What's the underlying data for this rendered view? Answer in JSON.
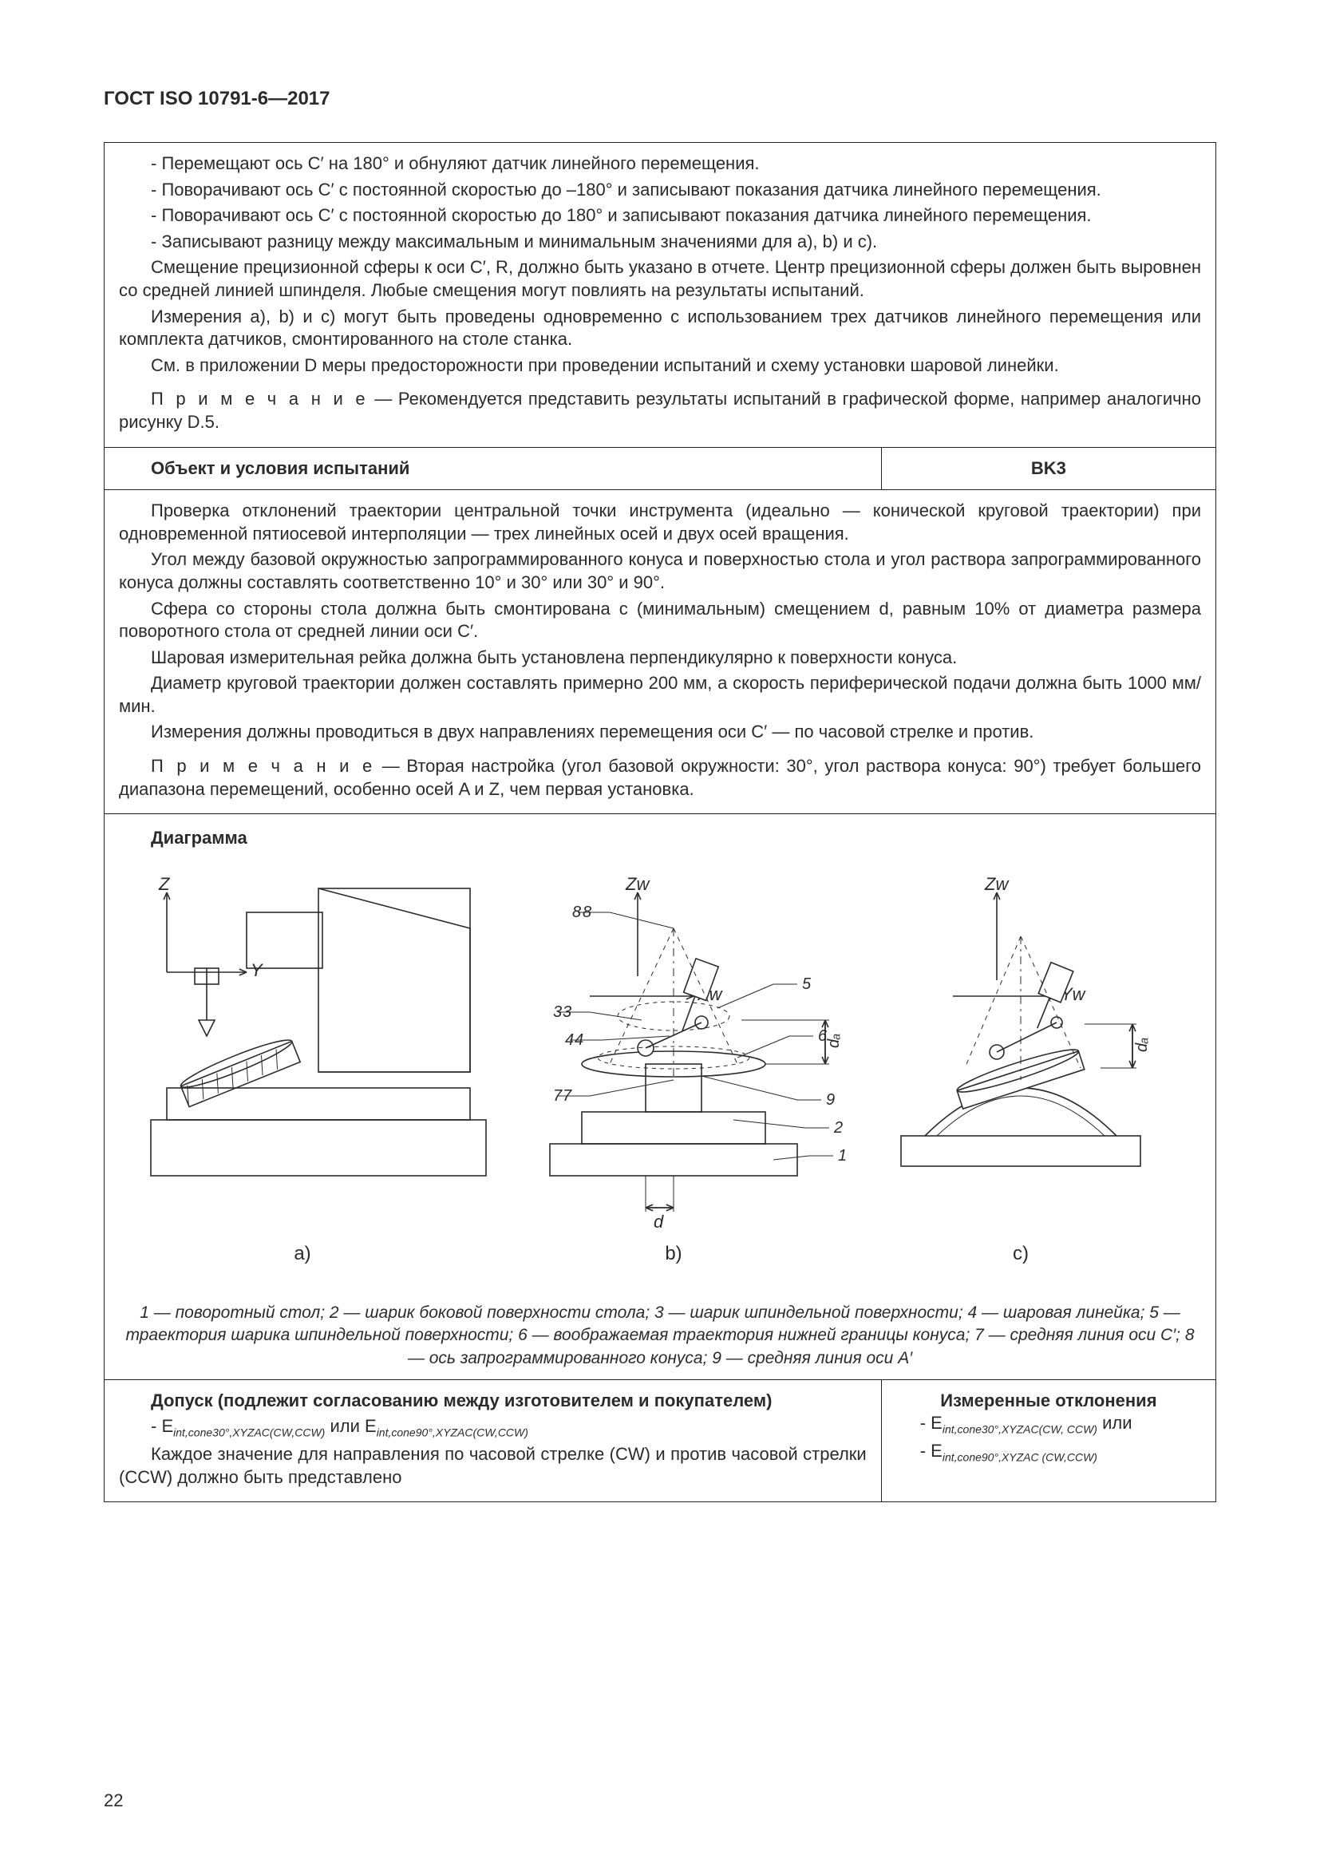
{
  "header": "ГОСТ ISO 10791-6—2017",
  "pageNumber": "22",
  "block1": {
    "p1": "- Перемещают ось C′ на 180° и обнуляют датчик линейного перемещения.",
    "p2": "- Поворачивают ось C′ с постоянной скоростью до –180° и записывают показания датчика линейного перемещения.",
    "p3": "- Поворачивают ось C′ с постоянной скоростью до 180° и записывают показания датчика линейного перемещения.",
    "p4": "- Записывают разницу между максимальным и минимальным значениями для a), b) и c).",
    "p5": "Смещение прецизионной сферы к оси C′, R, должно быть указано в отчете. Центр прецизионной сферы должен быть выровнен со средней линией шпинделя. Любые смещения могут повлиять на результаты испытаний.",
    "p6": "Измерения a), b) и c) могут быть проведены одновременно с использованием трех датчиков линейного перемещения или комплекта датчиков, смонтированного на столе станка.",
    "p7": "См. в приложении D меры предосторожности при проведении испытаний и схему установки шаровой линейки.",
    "noteLabel": "П р и м е ч а н и е",
    "noteText": " — Рекомендуется представить результаты испытаний в графической форме, например аналогично рисунку D.5."
  },
  "row2": {
    "left": "Объект и условия испытаний",
    "right": "BK3"
  },
  "block2": {
    "p1": "Проверка отклонений траектории центральной точки инструмента (идеально — конической круговой траектории) при одновременной пятиосевой интерполяции — трех линейных осей и двух осей вращения.",
    "p2": "Угол между базовой окружностью запрограммированного конуса и поверхностью стола и угол раствора запрограммированного конуса должны составлять соответственно 10° и 30° или 30° и 90°.",
    "p3": "Сфера со стороны стола должна быть смонтирована с (минимальным) смещением d, равным 10% от диаметра размера поворотного стола от средней линии оси C′.",
    "p4": "Шаровая измерительная рейка должна быть установлена перпендикулярно к поверхности конуса.",
    "p5": "Диаметр круговой траектории должен составлять примерно 200 мм, а скорость периферической подачи должна быть 1000 мм/мин.",
    "p6": "Измерения должны проводиться в двух направлениях перемещения оси C′ — по часовой стрелке и против.",
    "noteLabel": "П р и м е ч а н и е",
    "noteText": " — Вторая настройка (угол базовой окружности: 30°, угол раствора конуса: 90°) требует большего диапазона перемещений, особенно осей A и Z, чем первая установка."
  },
  "diagram": {
    "title": "Диаграмма",
    "labels": {
      "Z": "Z",
      "Y": "Y",
      "Zw": "Zw",
      "Xw": "Xw",
      "Yw": "Yw",
      "d": "d",
      "da": "dₐ"
    },
    "sub_a": "a)",
    "sub_b": "b)",
    "sub_c": "c)",
    "callouts": [
      "1",
      "2",
      "3",
      "4",
      "5",
      "6",
      "7",
      "8",
      "9"
    ],
    "legend": "1 — поворотный стол; 2 — шарик боковой поверхности стола; 3 — шарик шпиндельной поверхности; 4 — шаровая линейка; 5 — траектория шарика шпиндельной поверхности; 6 — воображаемая траектория нижней границы конуса; 7 — средняя линия оси C′; 8 — ось запрограммированного конуса; 9 — средняя линия оси A′",
    "line_color": "#2b2b2b",
    "line_width": 1.6,
    "thin_width": 1.0,
    "font": "Arial"
  },
  "row4": {
    "leftTitle": "Допуск (подлежит согласованию между изготовителем и покупателем)",
    "leftLine1_a": "- E",
    "leftLine1_sub1": "int,cone30°,XYZAC(CW,CCW)",
    "leftLine1_mid": " или E",
    "leftLine1_sub2": "int,cone90°,XYZAC(CW,CCW)",
    "leftLine2": "Каждое значение для направления по часовой стрелке (CW) и против часовой стрелки (CCW) должно быть представлено",
    "rightTitle": "Измеренные отклонения",
    "rightLine1_a": "- E",
    "rightLine1_sub": "int,cone30°,XYZAC(CW, CCW)",
    "rightLine1_end": " или",
    "rightLine2_a": "- E",
    "rightLine2_sub": "int,cone90°,XYZAC (CW,CCW)"
  }
}
